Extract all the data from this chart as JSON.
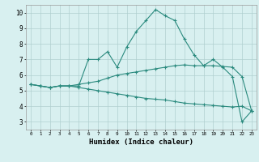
{
  "xlabel": "Humidex (Indice chaleur)",
  "x": [
    0,
    1,
    2,
    3,
    4,
    5,
    6,
    7,
    8,
    9,
    10,
    11,
    12,
    13,
    14,
    15,
    16,
    17,
    18,
    19,
    20,
    21,
    22,
    23
  ],
  "line1": [
    5.4,
    5.3,
    5.2,
    5.3,
    5.3,
    5.3,
    7.0,
    7.0,
    7.5,
    6.5,
    7.8,
    8.8,
    9.5,
    10.2,
    9.8,
    9.5,
    8.3,
    7.3,
    6.6,
    7.0,
    6.5,
    5.9,
    3.0,
    3.7
  ],
  "line2": [
    5.4,
    5.3,
    5.2,
    5.3,
    5.3,
    5.4,
    5.5,
    5.6,
    5.8,
    6.0,
    6.1,
    6.2,
    6.3,
    6.4,
    6.5,
    6.6,
    6.65,
    6.6,
    6.6,
    6.6,
    6.55,
    6.5,
    5.9,
    3.7
  ],
  "line3": [
    5.4,
    5.3,
    5.2,
    5.3,
    5.3,
    5.2,
    5.1,
    5.0,
    4.9,
    4.8,
    4.7,
    4.6,
    4.5,
    4.45,
    4.4,
    4.3,
    4.2,
    4.15,
    4.1,
    4.05,
    4.0,
    3.95,
    4.0,
    3.7
  ],
  "line_color": "#2a8a7e",
  "bg_color": "#d8f0f0",
  "grid_color": "#b0d0d0",
  "ylim": [
    2.5,
    10.5
  ],
  "xlim": [
    -0.5,
    23.5
  ],
  "yticks": [
    3,
    4,
    5,
    6,
    7,
    8,
    9,
    10
  ],
  "xticks": [
    0,
    1,
    2,
    3,
    4,
    5,
    6,
    7,
    8,
    9,
    10,
    11,
    12,
    13,
    14,
    15,
    16,
    17,
    18,
    19,
    20,
    21,
    22,
    23
  ]
}
